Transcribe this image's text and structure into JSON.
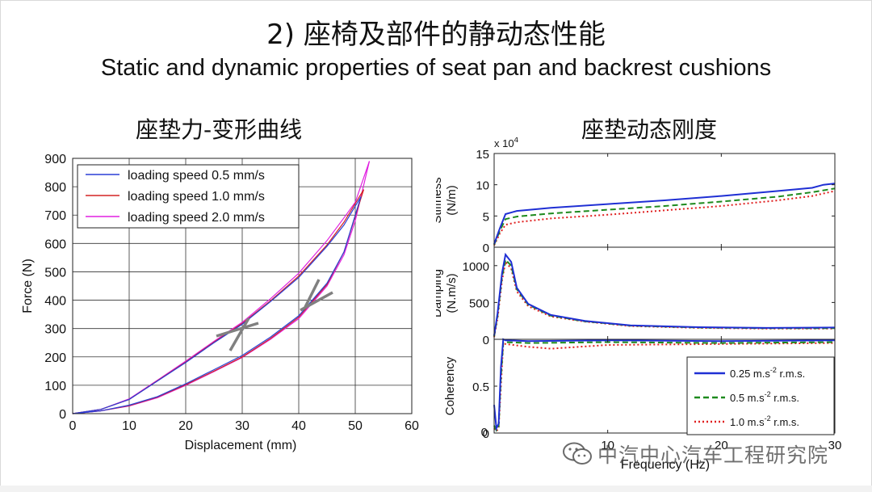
{
  "slide": {
    "title_zh": "2) 座椅及部件的静动态性能",
    "title_en": "Static and dynamic properties of seat pan and backrest cushions",
    "left_subtitle": "座垫力-变形曲线",
    "right_subtitle": "座垫动态刚度"
  },
  "watermark": {
    "text": "中汽中心汽车工程研究院",
    "icon": "wechat-icon"
  },
  "chart_data": [
    {
      "type": "line",
      "xlabel": "Displacement (mm)",
      "ylabel": "Force (N)",
      "xlim": [
        0,
        60
      ],
      "ylim": [
        0,
        900
      ],
      "xticks": [
        "0",
        "10",
        "20",
        "30",
        "40",
        "50",
        "60"
      ],
      "yticks": [
        "0",
        "100",
        "200",
        "300",
        "400",
        "500",
        "600",
        "700",
        "800",
        "900"
      ],
      "grid": true,
      "legend_position": "top-left",
      "series": [
        {
          "name": "loading speed 0.5 mm/s",
          "color": "#2b3fd6",
          "max_x": 51,
          "loading": {
            "x": [
              0,
              5,
              10,
              15,
              20,
              25,
              30,
              35,
              40,
              45,
              48,
              51
            ],
            "y": [
              0,
              10,
              30,
              60,
              105,
              155,
              205,
              270,
              345,
              460,
              570,
              765
            ]
          },
          "unloading": {
            "x": [
              51,
              48,
              45,
              40,
              35,
              30,
              25,
              20,
              15,
              10,
              5,
              0
            ],
            "y": [
              765,
              665,
              590,
              480,
              395,
              315,
              250,
              180,
              115,
              50,
              15,
              0
            ]
          }
        },
        {
          "name": "loading speed 1.0 mm/s",
          "color": "#d42424",
          "max_x": 51.5,
          "loading": {
            "x": [
              0,
              5,
              10,
              15,
              20,
              25,
              30,
              35,
              40,
              45,
              48,
              51.5
            ],
            "y": [
              0,
              10,
              28,
              58,
              102,
              150,
              200,
              265,
              340,
              455,
              570,
              790
            ]
          },
          "unloading": {
            "x": [
              51.5,
              48,
              45,
              40,
              35,
              30,
              25,
              20,
              15,
              10,
              5,
              0
            ],
            "y": [
              790,
              675,
              595,
              485,
              398,
              318,
              252,
              182,
              116,
              50,
              15,
              0
            ]
          }
        },
        {
          "name": "loading speed 2.0 mm/s",
          "color": "#e020e0",
          "max_x": 52.5,
          "loading": {
            "x": [
              0,
              5,
              10,
              15,
              20,
              25,
              30,
              35,
              40,
              45,
              48,
              50,
              52.5
            ],
            "y": [
              0,
              10,
              27,
              56,
              100,
              148,
              198,
              262,
              335,
              450,
              560,
              680,
              890
            ]
          },
          "unloading": {
            "x": [
              52.5,
              50,
              48,
              45,
              40,
              35,
              30,
              25,
              20,
              15,
              10,
              5,
              0
            ],
            "y": [
              890,
              745,
              690,
              610,
              495,
              405,
              322,
              255,
              185,
              118,
              52,
              15,
              0
            ]
          }
        }
      ]
    },
    {
      "type": "line",
      "xlabel": "Frequency (Hz)",
      "xlim": [
        0,
        30
      ],
      "xticks": [
        "10",
        "20",
        "30"
      ],
      "legend_position": "bottom-right",
      "series_styles": [
        {
          "name": "0.25 m.s-2 r.m.s.",
          "name_base": "0.25 m.s",
          "name_sup": "-2",
          "name_tail": " r.m.s.",
          "color": "#1f2fd4",
          "dash": "solid"
        },
        {
          "name": "0.5 m.s-2 r.m.s.",
          "name_base": "0.5 m.s",
          "name_sup": "-2",
          "name_tail": " r.m.s.",
          "color": "#1e8a1e",
          "dash": "dashed"
        },
        {
          "name": "1.0 m.s-2 r.m.s.",
          "name_base": "1.0 m.s",
          "name_sup": "-2",
          "name_tail": " r.m.s.",
          "color": "#e02020",
          "dash": "dotted"
        }
      ],
      "panels": [
        {
          "name": "stiffness",
          "ylabel_line1": "Stiffness",
          "ylabel_line2": "(N/m)",
          "ylim": [
            0,
            15
          ],
          "yticks": [
            "0",
            "5",
            "10",
            "15"
          ],
          "scale_note_base": "x 10",
          "scale_note_exp": "4",
          "series": [
            {
              "x": [
                0,
                0.5,
                1,
                2,
                5,
                10,
                15,
                20,
                25,
                28,
                29,
                30
              ],
              "y": [
                0.5,
                3,
                5.3,
                5.8,
                6.3,
                6.9,
                7.5,
                8.2,
                9,
                9.5,
                10,
                10.2
              ]
            },
            {
              "x": [
                0,
                0.5,
                1,
                2,
                5,
                10,
                15,
                20,
                25,
                28,
                29,
                30
              ],
              "y": [
                0.4,
                2.6,
                4.5,
                4.9,
                5.4,
                6.0,
                6.6,
                7.3,
                8.1,
                8.8,
                9.1,
                9.4
              ]
            },
            {
              "x": [
                0,
                0.5,
                1,
                2,
                5,
                10,
                15,
                20,
                25,
                28,
                29,
                30
              ],
              "y": [
                0.3,
                2.2,
                3.6,
                4.0,
                4.6,
                5.2,
                5.9,
                6.6,
                7.5,
                8.2,
                8.6,
                9.0
              ]
            }
          ]
        },
        {
          "name": "damping",
          "ylabel_line1": "Damping",
          "ylabel_line2": "(N.m/s)",
          "ylim": [
            0,
            1250
          ],
          "yticks": [
            "0",
            "500",
            "1000"
          ],
          "series": [
            {
              "x": [
                0,
                0.3,
                0.7,
                1,
                1.5,
                2,
                3,
                5,
                8,
                12,
                18,
                24,
                30
              ],
              "y": [
                50,
                350,
                900,
                1150,
                1050,
                700,
                480,
                330,
                250,
                190,
                165,
                155,
                160
              ]
            },
            {
              "x": [
                0,
                0.3,
                0.7,
                1,
                1.5,
                2,
                3,
                5,
                8,
                12,
                18,
                24,
                30
              ],
              "y": [
                40,
                320,
                850,
                1080,
                1000,
                680,
                470,
                320,
                245,
                185,
                160,
                150,
                150
              ]
            },
            {
              "x": [
                0,
                0.3,
                0.7,
                1,
                1.5,
                2,
                3,
                5,
                8,
                12,
                18,
                24,
                30
              ],
              "y": [
                30,
                280,
                800,
                1050,
                960,
                650,
                450,
                310,
                240,
                180,
                155,
                145,
                145
              ]
            }
          ]
        },
        {
          "name": "coherency",
          "ylabel_line1": "Coherency",
          "ylim": [
            0,
            1
          ],
          "yticks": [
            "0",
            "0.5"
          ],
          "series": [
            {
              "x": [
                0,
                0.2,
                0.4,
                0.6,
                0.8,
                1,
                3,
                10,
                20,
                30
              ],
              "y": [
                0.3,
                0.05,
                0.1,
                0.7,
                1.0,
                0.99,
                0.98,
                0.99,
                0.98,
                0.99
              ]
            },
            {
              "x": [
                0,
                0.2,
                0.4,
                0.6,
                0.8,
                1,
                3,
                10,
                20,
                30
              ],
              "y": [
                0.08,
                0.03,
                0.07,
                0.6,
                0.97,
                0.97,
                0.96,
                0.97,
                0.96,
                0.97
              ]
            },
            {
              "x": [
                0,
                0.2,
                0.4,
                0.6,
                0.8,
                1,
                3,
                5,
                10,
                20,
                30
              ],
              "y": [
                0.05,
                0.02,
                0.05,
                0.5,
                0.95,
                0.95,
                0.92,
                0.9,
                0.94,
                0.95,
                0.96
              ]
            }
          ]
        }
      ]
    }
  ]
}
